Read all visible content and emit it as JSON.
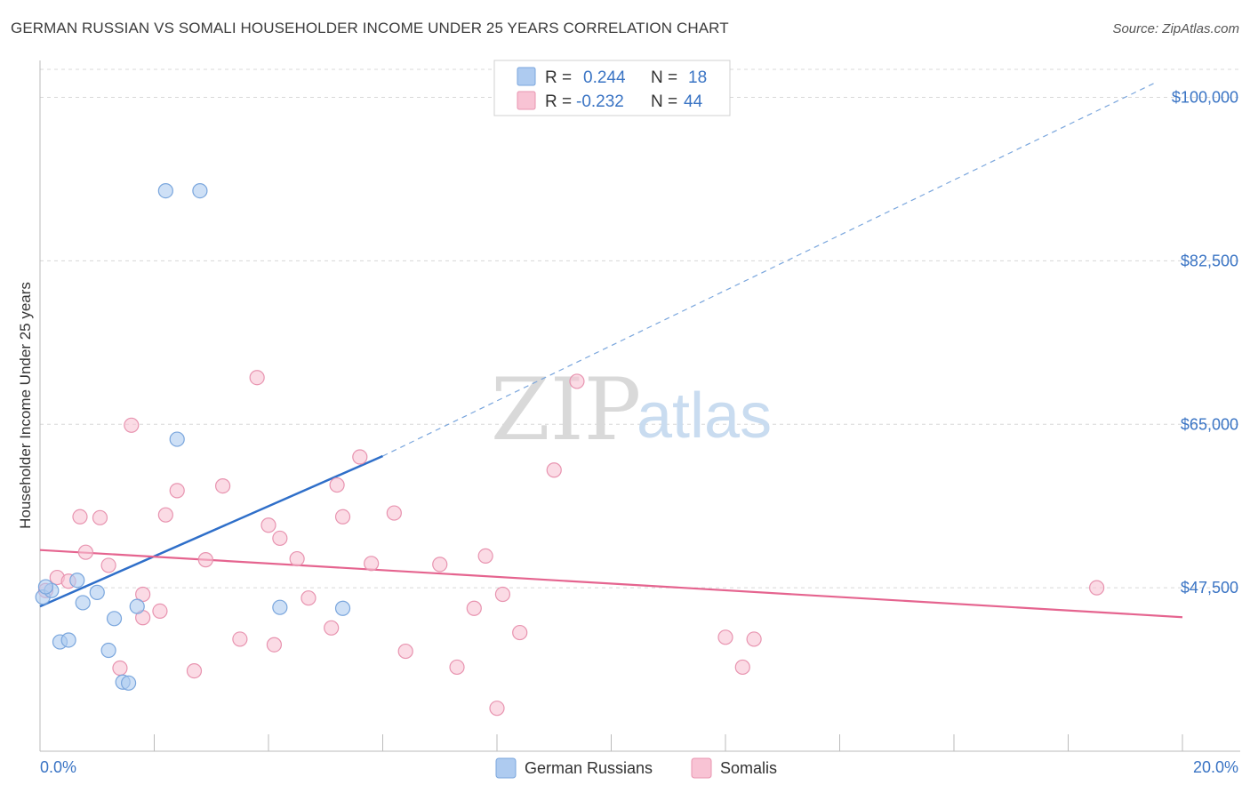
{
  "header": {
    "title": "GERMAN RUSSIAN VS SOMALI HOUSEHOLDER INCOME UNDER 25 YEARS CORRELATION CHART",
    "source": "Source: ZipAtlas.com"
  },
  "watermark": {
    "zip": "ZIP",
    "atlas": "atlas"
  },
  "colors": {
    "german_russian_fill": "#aecbf0",
    "german_russian_stroke": "#7aa6dd",
    "german_russian_line": "#2f6fc9",
    "somali_fill": "#f8c3d4",
    "somali_stroke": "#e894b0",
    "somali_line": "#e5648f",
    "grid": "#d8d8d8",
    "tick_text": "#3a74c4"
  },
  "legend": {
    "rows": [
      {
        "r_label": "R =",
        "r_value": "0.244",
        "n_label": "N =",
        "n_value": "18"
      },
      {
        "r_label": "R =",
        "r_value": "-0.232",
        "n_label": "N =",
        "n_value": "44"
      }
    ]
  },
  "bottom_legend": [
    "German Russians",
    "Somalis"
  ],
  "chart_data": {
    "type": "scatter",
    "title": "GERMAN RUSSIAN VS SOMALI HOUSEHOLDER INCOME UNDER 25 YEARS CORRELATION CHART",
    "xlabel": "",
    "ylabel": "Householder Income Under 25 years",
    "xlim": [
      0,
      20
    ],
    "ylim": [
      30000,
      103000
    ],
    "x_tick_labels": [
      "0.0%",
      "20.0%"
    ],
    "y_ticks": [
      47500,
      65000,
      82500,
      100000
    ],
    "y_tick_labels": [
      "$47,500",
      "$65,000",
      "$82,500",
      "$100,000"
    ],
    "grid": true,
    "legend_position": "top-center",
    "series": [
      {
        "name": "German Russians",
        "x": [
          0.05,
          0.2,
          0.35,
          0.5,
          0.65,
          0.75,
          1.0,
          1.2,
          1.3,
          1.45,
          1.55,
          1.7,
          2.2,
          2.4,
          2.8,
          4.2,
          5.3,
          0.1
        ],
        "y": [
          46500,
          47200,
          41700,
          41900,
          48300,
          45900,
          47000,
          40800,
          44200,
          37400,
          37300,
          45500,
          90000,
          63400,
          90000,
          45400,
          45300,
          47600
        ],
        "trend": {
          "x0": 0.0,
          "y0": 45500,
          "x1": 6.0,
          "y1": 61600,
          "dash_to_x": 19.5,
          "dash_to_y": 101500
        }
      },
      {
        "name": "Somalis",
        "x": [
          0.1,
          0.3,
          0.5,
          0.7,
          0.8,
          1.05,
          1.2,
          1.4,
          1.6,
          1.8,
          1.8,
          2.1,
          2.2,
          2.4,
          2.7,
          2.9,
          3.2,
          3.5,
          3.8,
          4.0,
          4.2,
          4.1,
          4.5,
          4.7,
          5.1,
          5.2,
          5.3,
          5.6,
          5.8,
          6.2,
          6.4,
          7.0,
          7.3,
          7.6,
          7.8,
          8.0,
          8.1,
          8.4,
          9.0,
          9.4,
          12.0,
          12.3,
          12.5,
          18.5
        ],
        "y": [
          47200,
          48600,
          48200,
          55100,
          51300,
          55000,
          49900,
          38900,
          64900,
          46800,
          44300,
          45000,
          55300,
          57900,
          38600,
          50500,
          58400,
          42000,
          70000,
          54200,
          52800,
          41400,
          50600,
          46400,
          43200,
          58500,
          55100,
          61500,
          50100,
          55500,
          40700,
          50000,
          39000,
          45300,
          50900,
          34600,
          46800,
          42700,
          60100,
          69600,
          42200,
          39000,
          42000,
          47500
        ]
      }
    ]
  }
}
